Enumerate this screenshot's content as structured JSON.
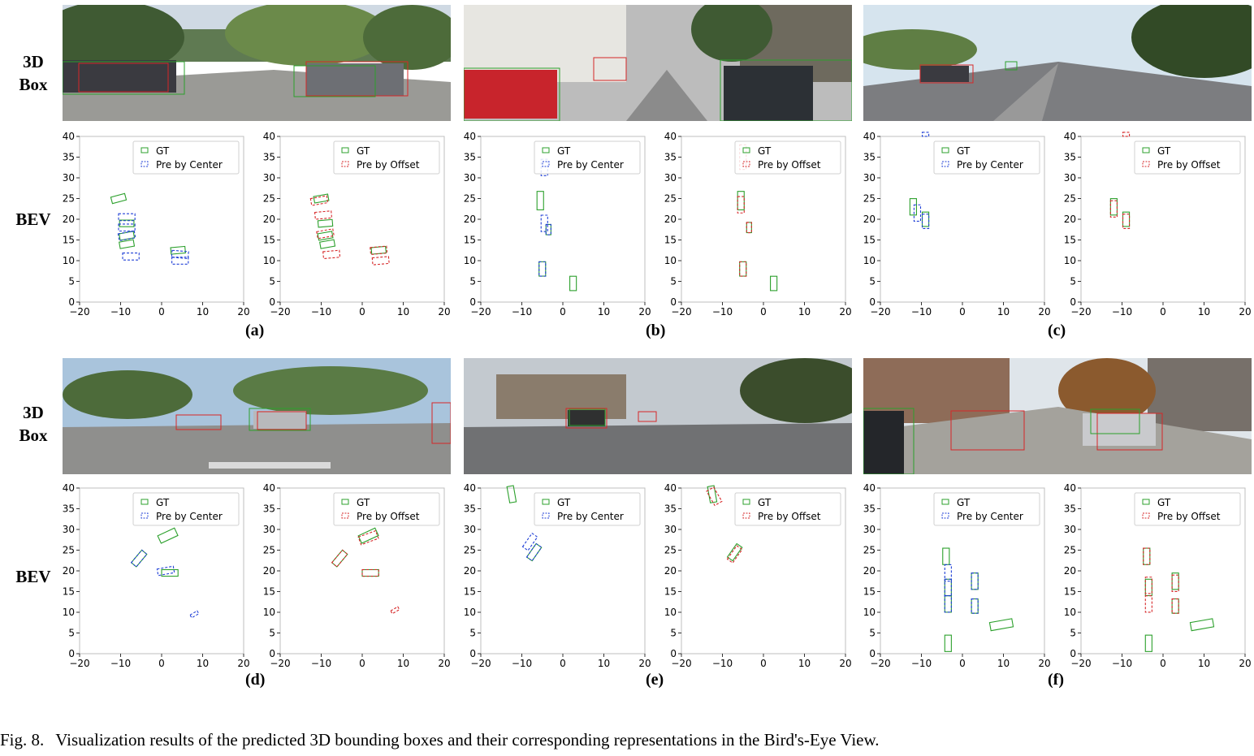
{
  "figure": {
    "caption_label": "Fig. 8.",
    "caption_text": "Visualization results of the predicted 3D bounding boxes and their corresponding representations in the Bird's-Eye View.",
    "row_label_box": [
      "3D",
      "Box"
    ],
    "row_label_bev": "BEV",
    "subfigure_labels": [
      "(a)",
      "(b)",
      "(c)",
      "(d)",
      "(e)",
      "(f)"
    ]
  },
  "colors": {
    "gt": "#2ca02c",
    "center": "#1f3fd6",
    "offset": "#d62728",
    "axis": "#bfbfbf",
    "tick": "#000000"
  },
  "chart_data": [
    {
      "type": "scatter",
      "panel": "a-left",
      "xlim": [
        -20,
        20
      ],
      "ylim": [
        0,
        40
      ],
      "xticks": [
        "−20",
        "−10",
        "0",
        "10",
        "20"
      ],
      "yticks": [
        "0",
        "5",
        "10",
        "15",
        "20",
        "25",
        "30",
        "35",
        "40"
      ],
      "legend": [
        "GT",
        "Pre by Center"
      ],
      "legend_position": "top-right",
      "gt": [
        [
          -10.5,
          25,
          3.5,
          1.6,
          15
        ],
        [
          -8.5,
          19,
          3.5,
          1.6,
          0
        ],
        [
          -8.5,
          16,
          3.5,
          1.6,
          10
        ],
        [
          -8.5,
          14,
          3.5,
          1.6,
          10
        ],
        [
          4,
          12.5,
          3.5,
          1.6,
          5
        ]
      ],
      "pred": [
        [
          -8.5,
          20.5,
          4,
          1.7,
          0
        ],
        [
          -8.5,
          18,
          4,
          1.7,
          0
        ],
        [
          -8.5,
          16,
          4,
          1.7,
          10
        ],
        [
          -7.5,
          11,
          4,
          1.7,
          0
        ],
        [
          4.5,
          11.5,
          4,
          1.7,
          -5
        ],
        [
          4.5,
          10,
          4,
          1.7,
          0
        ]
      ]
    },
    {
      "type": "scatter",
      "panel": "a-right",
      "xlim": [
        -20,
        20
      ],
      "ylim": [
        0,
        40
      ],
      "xticks": [
        "−20",
        "−10",
        "0",
        "10",
        "20"
      ],
      "yticks": [
        "0",
        "5",
        "10",
        "15",
        "20",
        "25",
        "30",
        "35",
        "40"
      ],
      "legend": [
        "GT",
        "Pre by Offset"
      ],
      "legend_position": "top-right",
      "gt": [
        [
          -10,
          25,
          3.5,
          1.6,
          10
        ],
        [
          -9,
          19,
          3.5,
          1.6,
          5
        ],
        [
          -9,
          16,
          3.5,
          1.6,
          10
        ],
        [
          -8.5,
          14,
          3.5,
          1.6,
          10
        ],
        [
          4,
          12.5,
          3.5,
          1.6,
          5
        ]
      ],
      "pred": [
        [
          -10.5,
          24.5,
          4,
          1.7,
          10
        ],
        [
          -9.5,
          21,
          4,
          1.7,
          5
        ],
        [
          -9,
          16.5,
          4,
          1.7,
          10
        ],
        [
          -7.5,
          11.5,
          4,
          1.7,
          5
        ],
        [
          4,
          12.5,
          4,
          1.7,
          5
        ],
        [
          4.5,
          10,
          4,
          1.7,
          5
        ]
      ]
    },
    {
      "type": "scatter",
      "panel": "b-left",
      "xlim": [
        -20,
        20
      ],
      "ylim": [
        0,
        40
      ],
      "xticks": [
        "−20",
        "−10",
        "0",
        "10",
        "20"
      ],
      "yticks": [
        "0",
        "5",
        "10",
        "15",
        "20",
        "25",
        "30",
        "35",
        "40"
      ],
      "legend": [
        "GT",
        "Pre by Center"
      ],
      "legend_position": "top-right",
      "gt": [
        [
          -5.5,
          24.5,
          1.6,
          4.5,
          0
        ],
        [
          2.5,
          4.5,
          1.6,
          3.5,
          0
        ],
        [
          -5,
          8,
          1.6,
          3.5,
          0
        ],
        [
          -3.5,
          17.5,
          1.2,
          2.5,
          0
        ]
      ],
      "pred": [
        [
          -4.5,
          32.5,
          1.6,
          4,
          0
        ],
        [
          -4.5,
          19,
          1.6,
          4,
          0
        ],
        [
          -3.5,
          17.5,
          1.2,
          2.5,
          0
        ],
        [
          -5,
          8,
          1.6,
          3.5,
          0
        ]
      ]
    },
    {
      "type": "scatter",
      "panel": "b-right",
      "xlim": [
        -20,
        20
      ],
      "ylim": [
        0,
        40
      ],
      "xticks": [
        "−20",
        "−10",
        "0",
        "10",
        "20"
      ],
      "yticks": [
        "0",
        "5",
        "10",
        "15",
        "20",
        "25",
        "30",
        "35",
        "40"
      ],
      "legend": [
        "GT",
        "Pre by Offset"
      ],
      "legend_position": "top-right",
      "gt": [
        [
          -5.5,
          24.5,
          1.6,
          4.5,
          0
        ],
        [
          2.5,
          4.5,
          1.6,
          3.5,
          0
        ],
        [
          -5,
          8,
          1.6,
          3.5,
          0
        ],
        [
          -3.5,
          18,
          1.2,
          2.5,
          0
        ]
      ],
      "pred": [
        [
          -5,
          35,
          1.6,
          6,
          0
        ],
        [
          -5.5,
          23.5,
          1.6,
          4,
          0
        ],
        [
          -3.5,
          18,
          1.2,
          2.5,
          0
        ],
        [
          -5,
          8,
          1.6,
          3.5,
          0
        ]
      ]
    },
    {
      "type": "scatter",
      "panel": "c-left",
      "xlim": [
        -20,
        20
      ],
      "ylim": [
        0,
        40
      ],
      "xticks": [
        "−20",
        "−10",
        "0",
        "10",
        "20"
      ],
      "yticks": [
        "0",
        "5",
        "10",
        "15",
        "20",
        "25",
        "30",
        "35",
        "40"
      ],
      "legend": [
        "GT",
        "Pre by Center"
      ],
      "legend_position": "top-right",
      "gt": [
        [
          -12,
          23,
          1.6,
          4,
          0
        ],
        [
          -9,
          20,
          1.6,
          3.5,
          0
        ]
      ],
      "pred": [
        [
          -11,
          21.5,
          1.6,
          4,
          0
        ],
        [
          -9,
          19.5,
          1.6,
          3.5,
          0
        ],
        [
          -9,
          40.5,
          1.6,
          1,
          0
        ]
      ]
    },
    {
      "type": "scatter",
      "panel": "c-right",
      "xlim": [
        -20,
        20
      ],
      "ylim": [
        0,
        40
      ],
      "xticks": [
        "−20",
        "−10",
        "0",
        "10",
        "20"
      ],
      "yticks": [
        "0",
        "5",
        "10",
        "15",
        "20",
        "25",
        "30",
        "35",
        "40"
      ],
      "legend": [
        "GT",
        "Pre by Offset"
      ],
      "legend_position": "top-right",
      "gt": [
        [
          -12,
          23,
          1.6,
          4,
          0
        ],
        [
          -9,
          20,
          1.6,
          3.5,
          0
        ]
      ],
      "pred": [
        [
          -12,
          22.5,
          1.6,
          4,
          0
        ],
        [
          -9,
          19.5,
          1.6,
          3.5,
          0
        ],
        [
          -9,
          40.5,
          1.6,
          1,
          0
        ]
      ]
    },
    {
      "type": "scatter",
      "panel": "d-left",
      "xlim": [
        -20,
        20
      ],
      "ylim": [
        0,
        40
      ],
      "xticks": [
        "−20",
        "−10",
        "0",
        "10",
        "20"
      ],
      "yticks": [
        "0",
        "5",
        "10",
        "15",
        "20",
        "25",
        "30",
        "35",
        "40"
      ],
      "legend": [
        "GT",
        "Pre by Center"
      ],
      "legend_position": "top-right",
      "gt": [
        [
          1.5,
          28.5,
          4.5,
          2,
          25
        ],
        [
          -5.5,
          23,
          4,
          1.6,
          50
        ],
        [
          2,
          19.5,
          4,
          1.6,
          0
        ]
      ],
      "pred": [
        [
          -5.5,
          23,
          4,
          1.6,
          50
        ],
        [
          1,
          20,
          4,
          1.6,
          10
        ],
        [
          8,
          9.5,
          2,
          0.8,
          30
        ]
      ]
    },
    {
      "type": "scatter",
      "panel": "d-right",
      "xlim": [
        -20,
        20
      ],
      "ylim": [
        0,
        40
      ],
      "xticks": [
        "−20",
        "−10",
        "0",
        "10",
        "20"
      ],
      "yticks": [
        "0",
        "5",
        "10",
        "15",
        "20",
        "25",
        "30",
        "35",
        "40"
      ],
      "legend": [
        "GT",
        "Pre by Offset"
      ],
      "legend_position": "top-right",
      "gt": [
        [
          1.5,
          28.5,
          4.5,
          2,
          25
        ],
        [
          -5.5,
          23,
          4,
          1.6,
          50
        ],
        [
          2,
          19.5,
          4,
          1.6,
          0
        ]
      ],
      "pred": [
        [
          1.5,
          28,
          4.5,
          2,
          20
        ],
        [
          -5.5,
          23,
          4,
          1.6,
          50
        ],
        [
          2,
          19.5,
          4,
          1.6,
          0
        ],
        [
          8,
          10.5,
          2,
          0.8,
          30
        ]
      ]
    },
    {
      "type": "scatter",
      "panel": "e-left",
      "xlim": [
        -20,
        20
      ],
      "ylim": [
        0,
        40
      ],
      "xticks": [
        "−20",
        "−10",
        "0",
        "10",
        "20"
      ],
      "yticks": [
        "0",
        "5",
        "10",
        "15",
        "20",
        "25",
        "30",
        "35",
        "40"
      ],
      "legend": [
        "GT",
        "Pre by Center"
      ],
      "legend_position": "top-right",
      "gt": [
        [
          -12.5,
          38.5,
          1.6,
          4,
          10
        ],
        [
          -7,
          24.5,
          4,
          1.6,
          55
        ]
      ],
      "pred": [
        [
          -8,
          27,
          4,
          1.6,
          55
        ],
        [
          -7,
          24.5,
          4,
          1.6,
          55
        ]
      ]
    },
    {
      "type": "scatter",
      "panel": "e-right",
      "xlim": [
        -20,
        20
      ],
      "ylim": [
        0,
        40
      ],
      "xticks": [
        "−20",
        "−10",
        "0",
        "10",
        "20"
      ],
      "yticks": [
        "0",
        "5",
        "10",
        "15",
        "20",
        "25",
        "30",
        "35",
        "40"
      ],
      "legend": [
        "GT",
        "Pre by Offset"
      ],
      "legend_position": "top-right",
      "gt": [
        [
          -12.5,
          38.5,
          1.6,
          4,
          10
        ],
        [
          -7,
          24.5,
          4,
          1.6,
          55
        ]
      ],
      "pred": [
        [
          -12,
          38,
          2,
          4,
          30
        ],
        [
          -7,
          24,
          4,
          1.6,
          55
        ]
      ]
    },
    {
      "type": "scatter",
      "panel": "f-left",
      "xlim": [
        -20,
        20
      ],
      "ylim": [
        0,
        40
      ],
      "xticks": [
        "−20",
        "−10",
        "0",
        "10",
        "20"
      ],
      "yticks": [
        "0",
        "5",
        "10",
        "15",
        "20",
        "25",
        "30",
        "35",
        "40"
      ],
      "legend": [
        "GT",
        "Pre by Center"
      ],
      "legend_position": "top-right",
      "gt": [
        [
          -4,
          23.5,
          1.6,
          4,
          0
        ],
        [
          -3.5,
          2.5,
          1.6,
          4,
          0
        ],
        [
          -3.5,
          16,
          1.6,
          4,
          0
        ],
        [
          -3.5,
          12,
          1.6,
          4,
          0
        ],
        [
          3,
          17.5,
          1.6,
          4,
          0
        ],
        [
          3,
          11.5,
          1.6,
          3.5,
          0
        ],
        [
          9.5,
          7,
          5.5,
          2,
          10
        ]
      ],
      "pred": [
        [
          -3.5,
          19.5,
          1.6,
          4,
          0
        ],
        [
          -3.5,
          16,
          1.6,
          4,
          0
        ],
        [
          -3.5,
          12,
          1.6,
          4,
          0
        ],
        [
          3,
          17.5,
          1.6,
          4,
          0
        ],
        [
          3,
          11.5,
          1.6,
          3.5,
          0
        ]
      ]
    },
    {
      "type": "scatter",
      "panel": "f-right",
      "xlim": [
        -20,
        20
      ],
      "ylim": [
        0,
        40
      ],
      "xticks": [
        "−20",
        "−10",
        "0",
        "10",
        "20"
      ],
      "yticks": [
        "0",
        "5",
        "10",
        "15",
        "20",
        "25",
        "30",
        "35",
        "40"
      ],
      "legend": [
        "GT",
        "Pre by Offset"
      ],
      "legend_position": "top-right",
      "gt": [
        [
          -4,
          23.5,
          1.6,
          4,
          0
        ],
        [
          -3.5,
          2.5,
          1.6,
          4,
          0
        ],
        [
          -3.5,
          16,
          1.6,
          4,
          0
        ],
        [
          3,
          17.5,
          1.6,
          4,
          0
        ],
        [
          3,
          11.5,
          1.6,
          3.5,
          0
        ],
        [
          9.5,
          7,
          5.5,
          2,
          10
        ]
      ],
      "pred": [
        [
          -4,
          23.5,
          1.6,
          4,
          0
        ],
        [
          -3.5,
          16.5,
          1.6,
          4,
          0
        ],
        [
          -3.5,
          12,
          1.6,
          4,
          0
        ],
        [
          3,
          17,
          1.6,
          4,
          0
        ],
        [
          3,
          11.5,
          1.6,
          3.5,
          0
        ]
      ]
    }
  ]
}
